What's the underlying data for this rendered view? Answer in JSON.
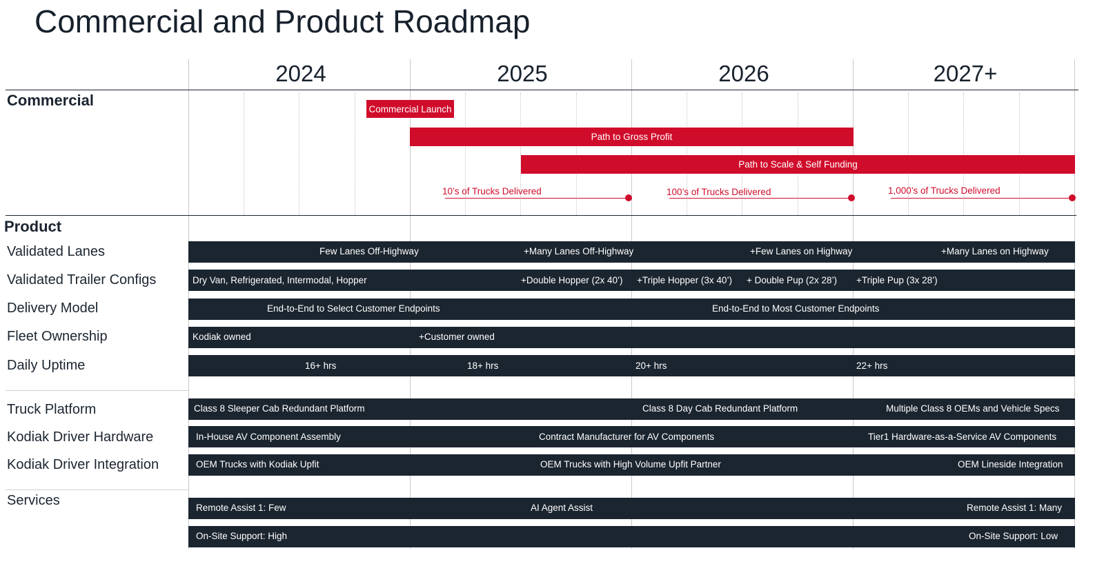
{
  "title": "Commercial and Product Roadmap",
  "years": [
    "2024",
    "2025",
    "2026",
    "2027+"
  ],
  "colors": {
    "accent_red": "#d00c2b",
    "bar_dark": "#1b2530"
  },
  "sections": {
    "commercial": "Commercial",
    "product": "Product"
  },
  "commercial": {
    "commercial_launch": "Commercial Launch",
    "gross_profit": "Path to Gross Profit",
    "scale_funding": "Path to Scale & Self Funding",
    "milestones": [
      "10’s of Trucks Delivered",
      "100’s of Trucks Delivered",
      "1,000’s of Trucks Delivered"
    ]
  },
  "rows": [
    {
      "label": "Validated Lanes",
      "segments": [
        "Few Lanes Off-Highway",
        "+Many Lanes Off-Highway",
        "+Few Lanes on Highway",
        "+Many Lanes on Highway"
      ]
    },
    {
      "label": "Validated Trailer Configs",
      "segments": [
        "Dry Van, Refrigerated, Intermodal, Hopper",
        "+Double Hopper (2x 40’)",
        "+Triple Hopper (3x 40’)",
        "+ Double Pup (2x 28’)",
        "+Triple Pup (3x 28’)"
      ]
    },
    {
      "label": "Delivery Model",
      "segments": [
        "End-to-End to Select Customer Endpoints",
        "End-to-End to Most Customer Endpoints"
      ]
    },
    {
      "label": "Fleet Ownership",
      "segments": [
        "Kodiak owned",
        "+Customer owned"
      ]
    },
    {
      "label": "Daily Uptime",
      "segments": [
        "16+ hrs",
        "18+ hrs",
        "20+ hrs",
        "22+ hrs"
      ]
    },
    {
      "label": "Truck Platform",
      "segments": [
        "Class 8 Sleeper Cab Redundant Platform",
        "Class 8 Day Cab Redundant Platform",
        "Multiple Class 8 OEMs and Vehicle Specs"
      ]
    },
    {
      "label": "Kodiak Driver Hardware",
      "segments": [
        "In-House AV Component Assembly",
        "Contract Manufacturer for AV Components",
        "Tier1 Hardware-as-a-Service AV Components"
      ]
    },
    {
      "label": "Kodiak Driver Integration",
      "segments": [
        "OEM Trucks with Kodiak Upfit",
        "OEM Trucks with High Volume Upfit Partner",
        "OEM Lineside Integration"
      ]
    },
    {
      "label": "Services",
      "segments": [
        "Remote Assist 1: Few",
        "AI Agent Assist",
        "Remote Assist 1: Many"
      ]
    },
    {
      "label": "",
      "segments": [
        "On-Site Support: High",
        "On-Site Support: Low"
      ]
    }
  ]
}
